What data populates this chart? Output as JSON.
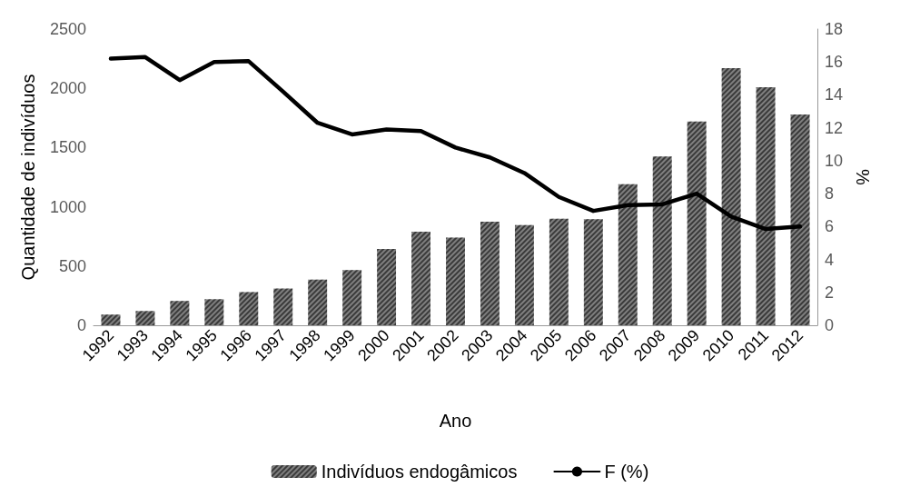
{
  "chart_data": {
    "type": "bar",
    "xlabel": "Ano",
    "ylabel": "Quantidade de indivíduos",
    "y2label": "%",
    "categories": [
      "1992",
      "1993",
      "1994",
      "1995",
      "1996",
      "1997",
      "1998",
      "1999",
      "2000",
      "2001",
      "2002",
      "2003",
      "2004",
      "2005",
      "2006",
      "2007",
      "2008",
      "2009",
      "2010",
      "2011",
      "2012"
    ],
    "series": [
      {
        "name": "Indivíduos endogâmicos",
        "color": "#808080",
        "values": [
          90,
          120,
          205,
          220,
          280,
          310,
          385,
          465,
          645,
          790,
          740,
          875,
          845,
          900,
          895,
          1190,
          1425,
          1720,
          2170,
          2010,
          1780
        ]
      },
      {
        "name": "F (%)",
        "type": "line",
        "axis": "y2",
        "color": "#000000",
        "values": [
          16.2,
          16.3,
          14.9,
          16.0,
          16.05,
          14.2,
          12.3,
          11.6,
          11.9,
          11.8,
          10.8,
          10.2,
          9.25,
          7.8,
          6.95,
          7.3,
          7.35,
          8.0,
          6.6,
          5.85,
          6.0
        ]
      }
    ],
    "ylim": [
      0,
      2500
    ],
    "yticks": [
      0,
      500,
      1000,
      1500,
      2000,
      2500
    ],
    "y2lim": [
      0,
      18
    ],
    "y2ticks": [
      0,
      2,
      4,
      6,
      8,
      10,
      12,
      14,
      16,
      18
    ],
    "legend": "bottom",
    "grid": false,
    "marker": "none",
    "line_style": "solid"
  }
}
